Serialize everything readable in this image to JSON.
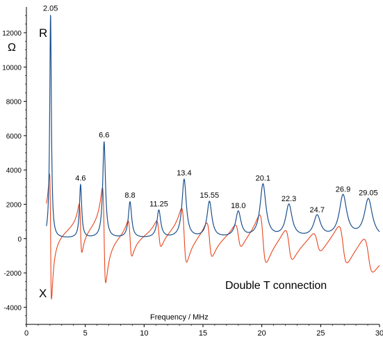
{
  "chart_data": {
    "type": "line",
    "title": "",
    "annotation": "Double T connection",
    "xlabel": "Frequency / MHz",
    "ylabel": "Ω",
    "xlim": [
      0,
      30
    ],
    "ylim": [
      -5000,
      13500
    ],
    "x_ticks": [
      0,
      5,
      10,
      15,
      20,
      25,
      30
    ],
    "x_tick_labels": [
      "0",
      "5",
      "10",
      "15",
      "20",
      "25",
      "30"
    ],
    "y_ticks": [
      -4000,
      -2000,
      0,
      2000,
      4000,
      6000,
      8000,
      10000,
      12000
    ],
    "y_tick_labels": [
      "-4000",
      "-2000",
      "0",
      "2000",
      "4000",
      "6000",
      "8000",
      "10000",
      "12000"
    ],
    "grid": false,
    "series": [
      {
        "name": "R",
        "color": "#1b4f8c",
        "resonances": [
          {
            "f": 2.05,
            "peak": 13000
          },
          {
            "f": 4.6,
            "peak": 3100
          },
          {
            "f": 6.6,
            "peak": 5600
          },
          {
            "f": 8.8,
            "peak": 2100
          },
          {
            "f": 11.25,
            "peak": 1600
          },
          {
            "f": 13.4,
            "peak": 3400
          },
          {
            "f": 15.55,
            "peak": 2100
          },
          {
            "f": 18.0,
            "peak": 1500
          },
          {
            "f": 20.1,
            "peak": 3100
          },
          {
            "f": 22.3,
            "peak": 1900
          },
          {
            "f": 24.7,
            "peak": 1250
          },
          {
            "f": 26.9,
            "peak": 2450
          },
          {
            "f": 29.05,
            "peak": 2250
          }
        ]
      },
      {
        "name": "X",
        "color": "#e8441a",
        "resonances": [
          {
            "f": 2.05,
            "max": 3100,
            "min": -4200
          },
          {
            "f": 4.6,
            "max": 1500,
            "min": -1400
          },
          {
            "f": 6.6,
            "max": 2700,
            "min": -2900
          },
          {
            "f": 8.8,
            "max": 1000,
            "min": -1150
          },
          {
            "f": 11.25,
            "max": 750,
            "min": -850
          },
          {
            "f": 13.4,
            "max": 1600,
            "min": -1650
          },
          {
            "f": 15.55,
            "max": 1000,
            "min": -1100
          },
          {
            "f": 18.0,
            "max": 700,
            "min": -750
          },
          {
            "f": 20.1,
            "max": 1500,
            "min": -1450
          },
          {
            "f": 22.3,
            "max": 900,
            "min": -1000
          },
          {
            "f": 24.7,
            "max": 600,
            "min": -650
          },
          {
            "f": 26.9,
            "max": 1200,
            "min": -1150
          },
          {
            "f": 29.05,
            "max": 1000,
            "min": -1100
          }
        ]
      }
    ],
    "peak_labels": [
      "2.05",
      "4.6",
      "6.6",
      "8.8",
      "11.25",
      "13.4",
      "15.55",
      "18.0",
      "20.1",
      "22.3",
      "24.7",
      "26.9",
      "29.05"
    ],
    "series_labels": [
      "R",
      "X"
    ]
  }
}
